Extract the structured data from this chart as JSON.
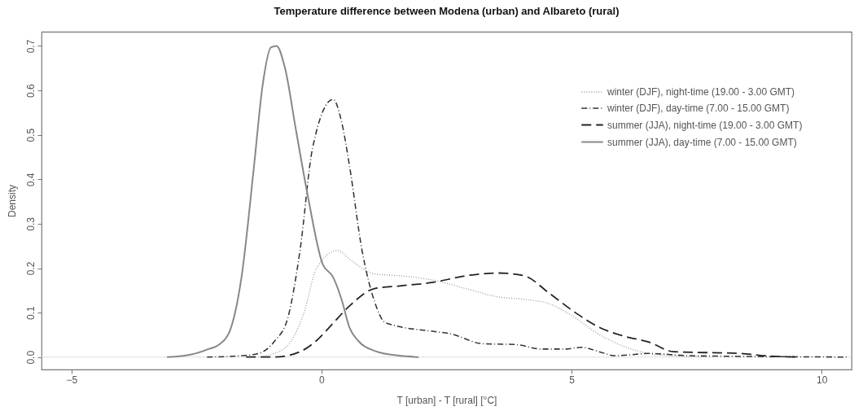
{
  "chart_data": {
    "type": "line",
    "title": "Temperature difference between Modena (urban) and Albareto (rural)",
    "xlabel": "T [urban] - T [rural] [°C]",
    "ylabel": "Density",
    "xlim": [
      -5.6,
      10.6
    ],
    "ylim": [
      -0.028,
      0.732
    ],
    "xticks": [
      -5,
      0,
      5,
      10
    ],
    "yticks": [
      {
        "value": 0,
        "label": "0.0"
      },
      0.1,
      0.2,
      0.3,
      0.4,
      0.5,
      0.6,
      0.7
    ],
    "grid": false,
    "legend": "top right",
    "marker": "none",
    "ref_lines": [
      {
        "axis": "y",
        "value": 0,
        "color": "#dddddd"
      }
    ],
    "series": [
      {
        "name": "winter (DJF), night-time (19.00 - 3.00 GMT)",
        "color": "#999999",
        "line_style": "dotted",
        "x": [
          -1.26,
          -0.76,
          -0.35,
          -0.1,
          0.32,
          0.56,
          1.06,
          1.56,
          2.23,
          2.89,
          3.55,
          4.05,
          4.55,
          5.05,
          5.55,
          6.05,
          6.54,
          7.04,
          7.7
        ],
        "values": [
          0,
          0.018,
          0.1,
          0.2,
          0.24,
          0.22,
          0.187,
          0.183,
          0.173,
          0.154,
          0.135,
          0.13,
          0.12,
          0.09,
          0.051,
          0.024,
          0.008,
          0.003,
          0
        ]
      },
      {
        "name": "winter (DJF), day-time (7.00 - 15.00 GMT)",
        "color": "#333333",
        "line_style": "dashdot",
        "x": [
          -2.29,
          -1.6,
          -1.26,
          -0.93,
          -0.68,
          -0.43,
          -0.18,
          0.23,
          0.4,
          0.56,
          0.81,
          1.06,
          1.28,
          2.28,
          2.56,
          3.22,
          3.89,
          4.39,
          4.88,
          5.2,
          5.55,
          5.88,
          6.54,
          7.38,
          10.5
        ],
        "values": [
          0,
          0.003,
          0.008,
          0.037,
          0.086,
          0.24,
          0.47,
          0.58,
          0.53,
          0.43,
          0.24,
          0.125,
          0.077,
          0.057,
          0.053,
          0.03,
          0.028,
          0.018,
          0.018,
          0.022,
          0.012,
          0.003,
          0.008,
          0.003,
          0
        ]
      },
      {
        "name": "summer (JJA), night-time (19.00 - 3.00 GMT)",
        "color": "#222222",
        "line_style": "dashed",
        "x": [
          -1.51,
          -0.93,
          -0.43,
          -0.1,
          0.23,
          0.56,
          1.06,
          1.56,
          2.23,
          2.89,
          3.55,
          4.05,
          4.55,
          5.05,
          5.55,
          6.05,
          6.54,
          7.04,
          8.4,
          8.87,
          9.5
        ],
        "values": [
          0,
          0,
          0.012,
          0.037,
          0.076,
          0.115,
          0.154,
          0.16,
          0.168,
          0.183,
          0.189,
          0.183,
          0.144,
          0.102,
          0.067,
          0.047,
          0.034,
          0.012,
          0.008,
          0.003,
          0
        ]
      },
      {
        "name": "summer (JJA), day-time (7.00 - 15.00 GMT)",
        "color": "#888888",
        "line_style": "solid",
        "x": [
          -3.09,
          -2.6,
          -2.26,
          -2.05,
          -1.84,
          -1.6,
          -1.35,
          -1.18,
          -1.01,
          -0.9,
          -0.73,
          -0.51,
          -0.27,
          0.02,
          0.23,
          0.4,
          0.56,
          0.73,
          1.06,
          1.56,
          1.94
        ],
        "values": [
          0,
          0.006,
          0.018,
          0.028,
          0.057,
          0.18,
          0.43,
          0.61,
          0.697,
          0.7,
          0.65,
          0.51,
          0.36,
          0.21,
          0.18,
          0.13,
          0.066,
          0.037,
          0.014,
          0.003,
          0
        ]
      }
    ]
  }
}
